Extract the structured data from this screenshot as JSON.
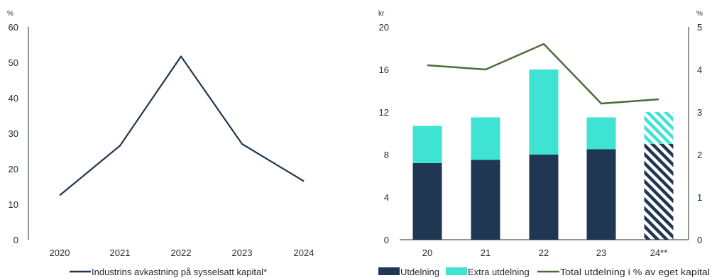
{
  "chart_data": [
    {
      "type": "line",
      "title": "",
      "ylabel": "%",
      "xlabel": "",
      "ylim": [
        0,
        60
      ],
      "yticks": [
        0,
        10,
        20,
        30,
        40,
        50,
        60
      ],
      "x": [
        "2020",
        "2021",
        "2022",
        "2023",
        "2024"
      ],
      "series": [
        {
          "name": "Industrins avkastning på sysselsatt kapital*",
          "values": [
            12.5,
            26.5,
            51.7,
            27,
            16.5
          ],
          "color": "#1f3752"
        }
      ],
      "grid": false,
      "legend": "bottom"
    },
    {
      "type": "bar",
      "title": "",
      "ylabel": "kr",
      "ylabel_right": "%",
      "xlabel": "",
      "ylim": [
        0,
        20
      ],
      "yticks": [
        0,
        4,
        8,
        12,
        16,
        20
      ],
      "ylim_right": [
        0,
        5
      ],
      "yticks_right": [
        0,
        1,
        2,
        3,
        4,
        5
      ],
      "categories": [
        "20",
        "21",
        "22",
        "23",
        "24**"
      ],
      "stacked": true,
      "hatched_categories": [
        "24**"
      ],
      "series": [
        {
          "name": "Utdelning",
          "values": [
            7.2,
            7.5,
            8,
            8.5,
            9
          ],
          "color": "#1f3752"
        },
        {
          "name": "Extra utdelning",
          "values": [
            3.5,
            4,
            8,
            3,
            3
          ],
          "color": "#3ee3d3"
        },
        {
          "name": "Total utdelning i % av eget kapital",
          "axis": "right",
          "type": "line",
          "values": [
            4.1,
            4.0,
            4.6,
            3.2,
            3.3
          ],
          "color": "#4d6b35"
        }
      ],
      "grid": false,
      "legend": "bottom"
    }
  ]
}
